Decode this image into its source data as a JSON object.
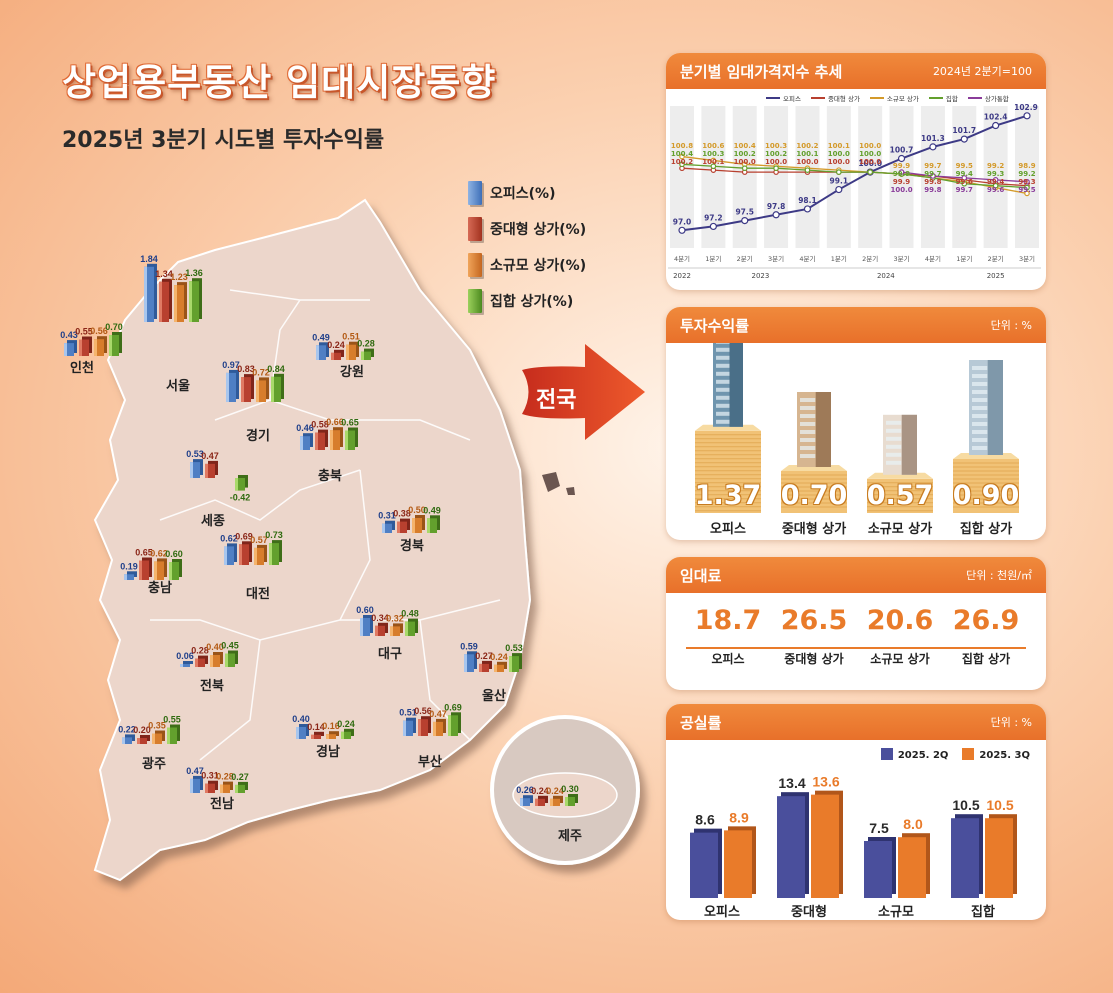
{
  "title": "상업용부동산 임대시장동향",
  "subtitle": "2025년 3분기 시도별 투자수익률",
  "colors": {
    "office": "#4f7fc4",
    "mid": "#b8402f",
    "small": "#d77d2c",
    "complex": "#63a02d",
    "trend": "#3d3a86",
    "q2": "#4a4f9c",
    "q3": "#e97b2a",
    "accent": "#e8702a"
  },
  "map_legend": [
    "오피스(%)",
    "중대형 상가(%)",
    "소규모 상가(%)",
    "집합 상가(%)"
  ],
  "arrow_label": "전국",
  "regions": [
    {
      "name": "인천",
      "values": [
        0.43,
        0.55,
        0.56,
        0.7
      ]
    },
    {
      "name": "서울",
      "values": [
        1.84,
        1.34,
        1.23,
        1.36
      ]
    },
    {
      "name": "강원",
      "values": [
        0.49,
        0.24,
        0.51,
        0.28
      ]
    },
    {
      "name": "경기",
      "values": [
        0.97,
        0.83,
        0.72,
        0.84
      ]
    },
    {
      "name": "세종",
      "values": [
        0.53,
        0.47,
        null,
        -0.42
      ]
    },
    {
      "name": "충북",
      "values": [
        0.46,
        0.58,
        0.66,
        0.65
      ]
    },
    {
      "name": "경북",
      "values": [
        0.31,
        0.38,
        0.5,
        0.49
      ]
    },
    {
      "name": "충남",
      "values": [
        0.19,
        0.65,
        0.62,
        0.6
      ]
    },
    {
      "name": "대전",
      "values": [
        0.62,
        0.69,
        0.57,
        0.73
      ]
    },
    {
      "name": "대구",
      "values": [
        0.6,
        0.34,
        0.32,
        0.48
      ]
    },
    {
      "name": "전북",
      "values": [
        0.06,
        0.28,
        0.4,
        0.45
      ]
    },
    {
      "name": "울산",
      "values": [
        0.59,
        0.27,
        0.24,
        0.53
      ]
    },
    {
      "name": "광주",
      "values": [
        0.22,
        0.2,
        0.35,
        0.55
      ]
    },
    {
      "name": "경남",
      "values": [
        0.4,
        0.14,
        0.16,
        0.24
      ]
    },
    {
      "name": "부산",
      "values": [
        0.51,
        0.56,
        0.47,
        0.69
      ]
    },
    {
      "name": "전남",
      "values": [
        0.47,
        0.31,
        0.28,
        0.27
      ]
    },
    {
      "name": "제주",
      "values": [
        0.26,
        0.24,
        0.24,
        0.3
      ]
    }
  ],
  "chart_data": [
    {
      "type": "line",
      "title": "분기별 임대가격지수 추세",
      "note": "2024년 2분기=100",
      "x": [
        "4분기",
        "1분기",
        "2분기",
        "3분기",
        "4분기",
        "1분기",
        "2분기",
        "3분기",
        "4분기",
        "1분기",
        "2분기",
        "3분기"
      ],
      "years": [
        "2022",
        "2023",
        "2024",
        "2025"
      ],
      "series": [
        {
          "name": "오피스",
          "values": [
            97.0,
            97.2,
            97.5,
            97.8,
            98.1,
            99.1,
            100.0,
            100.7,
            101.3,
            101.7,
            102.4,
            102.9
          ]
        },
        {
          "name": "중대형 상가",
          "values": [
            100.2,
            100.1,
            100.0,
            100.0,
            100.0,
            100.0,
            100.0,
            99.9,
            99.8,
            99.6,
            99.4,
            99.3
          ]
        },
        {
          "name": "소규모 상가",
          "values": [
            100.8,
            100.6,
            100.4,
            100.3,
            100.2,
            100.1,
            100.0,
            99.9,
            99.7,
            99.5,
            99.2,
            98.9
          ]
        },
        {
          "name": "집합",
          "values": [
            100.4,
            100.3,
            100.2,
            100.2,
            100.1,
            100.0,
            100.0,
            99.9,
            99.7,
            99.4,
            99.3,
            99.2
          ]
        },
        {
          "name": "상가통합",
          "values": [
            null,
            null,
            null,
            null,
            null,
            null,
            null,
            100.0,
            99.8,
            99.7,
            99.6,
            99.5
          ]
        }
      ]
    },
    {
      "type": "bar",
      "title": "투자수익률",
      "unit": "단위 : %",
      "categories": [
        "오피스",
        "중대형 상가",
        "소규모 상가",
        "집합 상가"
      ],
      "values": [
        1.37,
        0.7,
        0.57,
        0.9
      ]
    },
    {
      "type": "table",
      "title": "임대료",
      "unit": "단위 : 천원/㎡",
      "categories": [
        "오피스",
        "중대형 상가",
        "소규모 상가",
        "집합 상가"
      ],
      "values": [
        18.7,
        26.5,
        20.6,
        26.9
      ]
    },
    {
      "type": "bar",
      "title": "공실률",
      "unit": "단위 : %",
      "categories": [
        "오피스",
        "중대형",
        "소규모",
        "집합"
      ],
      "series": [
        {
          "name": "2025. 2Q",
          "values": [
            8.6,
            13.4,
            7.5,
            10.5
          ]
        },
        {
          "name": "2025. 3Q",
          "values": [
            8.9,
            13.6,
            8.0,
            10.5
          ]
        }
      ]
    }
  ]
}
